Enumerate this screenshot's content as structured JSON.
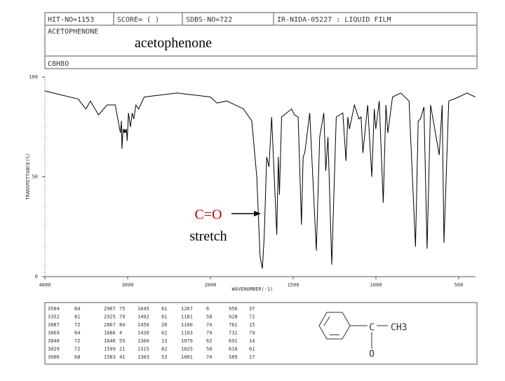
{
  "header": {
    "hit_no": "HIT-NO=1153",
    "score": "SCORE= ( )",
    "sdbs_no": "SDBS-NO=722",
    "method": "IR-NIDA-05227 : LIQUID FILM",
    "compound": "ACETOPHENONE",
    "formula": "C8H8O",
    "overlay_name": "acetophenone"
  },
  "chart_data": {
    "type": "line",
    "color": "#000000",
    "x_label": "WAVENUMBER(-1)",
    "y_label": "TRANSMITTANCE(%)",
    "xlim": [
      4000,
      400
    ],
    "xticks": [
      4000,
      3000,
      2000,
      1500,
      1000,
      500
    ],
    "ylim": [
      0,
      100
    ],
    "yticks": [
      0,
      50,
      100
    ],
    "x": [
      4000,
      3800,
      3600,
      3504,
      3450,
      3352,
      3250,
      3150,
      3087,
      3075,
      3069,
      3055,
      3040,
      3035,
      3029,
      3015,
      3006,
      2990,
      2967,
      2945,
      2925,
      2900,
      2867,
      2800,
      2600,
      2400,
      2200,
      2000,
      1960,
      1900,
      1800,
      1750,
      1720,
      1700,
      1686,
      1675,
      1660,
      1646,
      1630,
      1599,
      1590,
      1583,
      1570,
      1510,
      1492,
      1470,
      1450,
      1440,
      1430,
      1400,
      1360,
      1340,
      1315,
      1303,
      1290,
      1267,
      1240,
      1200,
      1181,
      1170,
      1160,
      1130,
      1103,
      1090,
      1079,
      1050,
      1025,
      1010,
      1001,
      980,
      956,
      940,
      928,
      900,
      850,
      800,
      761,
      745,
      731,
      710,
      691,
      670,
      618,
      600,
      589,
      560,
      500,
      450,
      400
    ],
    "values": [
      93,
      91,
      89,
      84,
      88,
      81,
      86,
      86,
      72,
      78,
      64,
      74,
      72,
      74,
      72,
      74,
      68,
      82,
      75,
      82,
      79,
      86,
      84,
      90,
      91,
      92,
      91,
      90,
      87,
      88,
      84,
      78,
      50,
      10,
      4,
      20,
      60,
      55,
      80,
      21,
      60,
      41,
      80,
      84,
      81,
      80,
      26,
      60,
      62,
      82,
      13,
      70,
      82,
      53,
      70,
      6,
      80,
      82,
      58,
      80,
      74,
      86,
      79,
      80,
      62,
      86,
      50,
      84,
      74,
      88,
      37,
      86,
      72,
      90,
      92,
      88,
      15,
      78,
      79,
      85,
      14,
      86,
      61,
      86,
      17,
      88,
      90,
      92,
      90
    ],
    "annotation": {
      "line1": "C=O",
      "line2": "stretch"
    }
  },
  "peak_table": {
    "rows": [
      [
        3504,
        84
      ],
      [
        3352,
        81
      ],
      [
        3087,
        72
      ],
      [
        3069,
        64
      ],
      [
        3040,
        72
      ],
      [
        3029,
        72
      ],
      [
        3006,
        68
      ],
      [
        2967,
        75
      ],
      [
        2925,
        79
      ],
      [
        2867,
        84
      ],
      [
        1686,
        4
      ],
      [
        1646,
        55
      ],
      [
        1599,
        21
      ],
      [
        1583,
        41
      ],
      [
        1645,
        81
      ],
      [
        1492,
        81
      ],
      [
        1450,
        26
      ],
      [
        1430,
        62
      ],
      [
        1360,
        13
      ],
      [
        1315,
        82
      ],
      [
        1303,
        53
      ],
      [
        1267,
        6
      ],
      [
        1181,
        58
      ],
      [
        1160,
        74
      ],
      [
        1103,
        79
      ],
      [
        1079,
        62
      ],
      [
        1025,
        50
      ],
      [
        1001,
        74
      ],
      [
        956,
        37
      ],
      [
        928,
        72
      ],
      [
        761,
        15
      ],
      [
        731,
        79
      ],
      [
        691,
        14
      ],
      [
        618,
        61
      ],
      [
        589,
        17
      ]
    ]
  },
  "structure": {
    "carbonyl": "C",
    "methyl": "CH3",
    "oxygen": "O"
  }
}
